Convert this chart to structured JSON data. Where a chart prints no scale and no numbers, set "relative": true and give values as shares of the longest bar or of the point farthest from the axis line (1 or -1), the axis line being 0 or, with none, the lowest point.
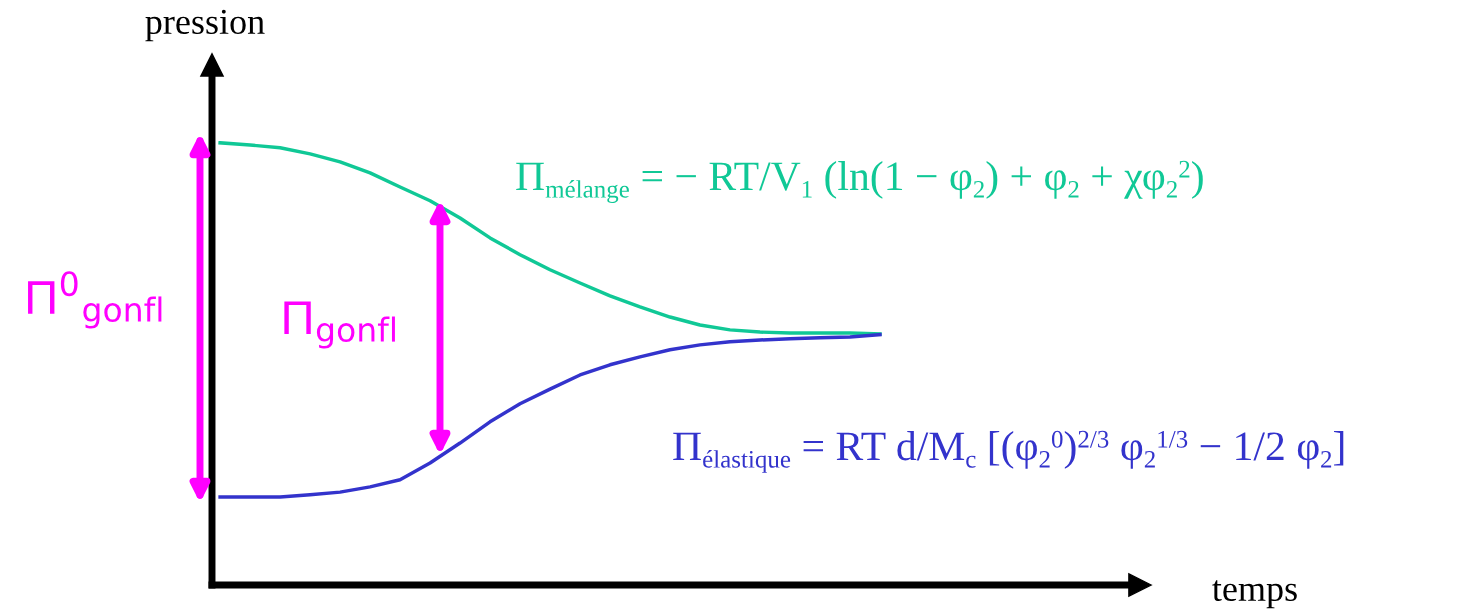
{
  "chart_data": {
    "type": "line",
    "relative": true,
    "xlabel": "temps",
    "ylabel": "pression",
    "categories": [
      null,
      null,
      null,
      null,
      null,
      null,
      null,
      null,
      null,
      null,
      null,
      null,
      null,
      null,
      null,
      null,
      null,
      null,
      null,
      null,
      null,
      null,
      null,
      null,
      null,
      null,
      null,
      null,
      null,
      null,
      null
    ],
    "series": [
      {
        "name": "Π$_{mélange}$ = − RT/V$_{1}$ (ln(1 − φ$_{2}$) + φ$_{2}$ + χφ$_{2}$$^{2}$)",
        "color": "#10c896",
        "values": [
          1.0,
          0.995,
          0.989,
          0.975,
          0.957,
          0.932,
          0.9,
          0.869,
          0.83,
          0.785,
          0.747,
          0.713,
          0.683,
          0.654,
          0.629,
          0.606,
          0.588,
          0.577,
          0.572,
          0.57,
          0.57,
          0.57,
          0.568,
          null,
          null,
          null,
          null,
          null,
          null,
          null,
          null
        ]
      },
      {
        "name": "Π$_{élastique}$ = RT d/M$_{c}$ [(φ$_{2}$$^{0}$)$^{2/3}$ φ$_{2}$$^{1/3}$ − 1/2 φ$_{2}$]",
        "color": "#3333cc",
        "values": [
          0.199,
          0.199,
          0.199,
          0.204,
          0.21,
          0.222,
          0.238,
          0.276,
          0.321,
          0.369,
          0.41,
          0.443,
          0.475,
          0.498,
          0.516,
          0.532,
          0.543,
          0.55,
          0.554,
          0.557,
          0.559,
          0.561,
          0.566,
          null,
          null,
          null,
          null,
          null,
          null,
          null,
          null
        ]
      }
    ],
    "annotations": [
      "Π$^{0}$$_{gonfl}$",
      "Π$_{gonfl}$"
    ],
    "legend": false,
    "grid": false
  }
}
